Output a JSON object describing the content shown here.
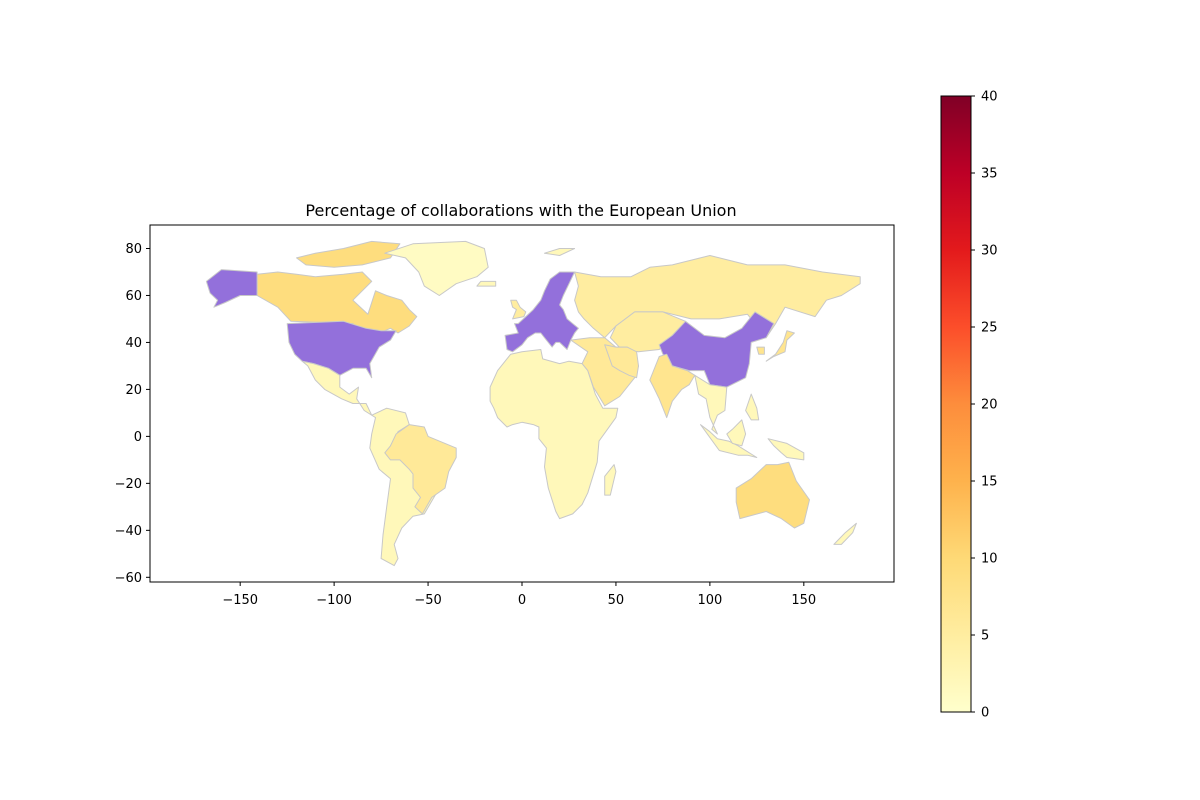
{
  "title": "Percentage of collaborations with the European Union",
  "colors": {
    "no_data": "#9370db",
    "border": "#c8c8c8",
    "colormap": [
      "#ffffcc",
      "#ffeda0",
      "#fed976",
      "#feb24c",
      "#fd8d3c",
      "#fc4e2a",
      "#e31a1c",
      "#bd0026",
      "#800026"
    ]
  },
  "axes": {
    "x_ticks": [
      "−150",
      "−100",
      "−50",
      "0",
      "50",
      "100",
      "150"
    ],
    "y_ticks": [
      "80",
      "60",
      "40",
      "20",
      "0",
      "−20",
      "−40",
      "−60"
    ],
    "xlim": [
      -198,
      198
    ],
    "ylim": [
      -62,
      90
    ]
  },
  "colorbar": {
    "range": [
      0,
      40
    ],
    "ticks": [
      "0",
      "5",
      "10",
      "15",
      "20",
      "25",
      "30",
      "35",
      "40"
    ]
  },
  "chart_data": {
    "type": "choropleth",
    "title": "Percentage of collaborations with the European Union",
    "value_range": [
      0,
      40
    ],
    "regions": [
      {
        "region": "United States",
        "value": null
      },
      {
        "region": "China",
        "value": null
      },
      {
        "region": "European Union",
        "value": null
      },
      {
        "region": "Canada",
        "value": 9
      },
      {
        "region": "Australia",
        "value": 9
      },
      {
        "region": "Russia",
        "value": 5
      },
      {
        "region": "Brazil",
        "value": 6
      },
      {
        "region": "India",
        "value": 7
      },
      {
        "region": "Japan",
        "value": 7
      },
      {
        "region": "Iran",
        "value": 6
      },
      {
        "region": "Greenland",
        "value": 1
      },
      {
        "region": "Africa",
        "value": 2
      },
      {
        "region": "Latin America",
        "value": 2
      }
    ]
  }
}
